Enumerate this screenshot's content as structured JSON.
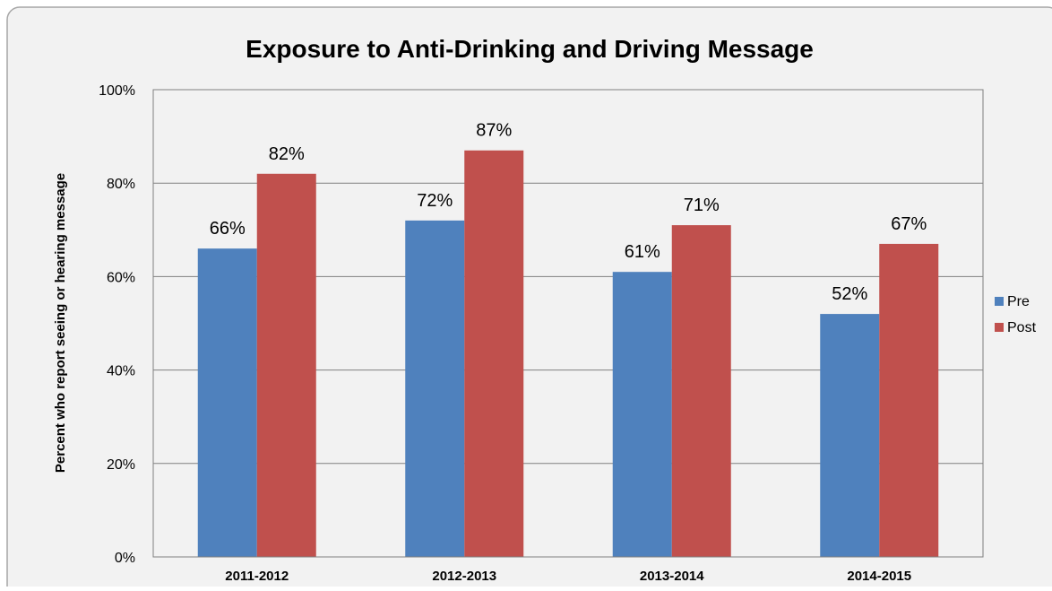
{
  "chart_data": {
    "type": "bar",
    "title": "Exposure to Anti-Drinking and Driving Message",
    "ylabel": "Percent  who report seeing or hearing message",
    "xlabel": "",
    "categories": [
      "2011-2012",
      "2012-2013",
      "2013-2014",
      "2014-2015"
    ],
    "series": [
      {
        "name": "Pre",
        "values": [
          66,
          72,
          61,
          52
        ],
        "color": "#4F81BD"
      },
      {
        "name": "Post",
        "values": [
          82,
          87,
          71,
          67
        ],
        "color": "#C0504D"
      }
    ],
    "value_suffix": "%",
    "ylim": [
      0,
      100
    ],
    "ytick_step": 20,
    "yticks": [
      "0%",
      "20%",
      "40%",
      "60%",
      "80%",
      "100%"
    ],
    "grid": true,
    "legend": "right",
    "colors": {
      "frame_fill": "#F2F2F2",
      "frame_border": "#A6A6A6",
      "plot_border": "#7F7F7F",
      "gridline": "#808080",
      "text": "#000000"
    }
  }
}
